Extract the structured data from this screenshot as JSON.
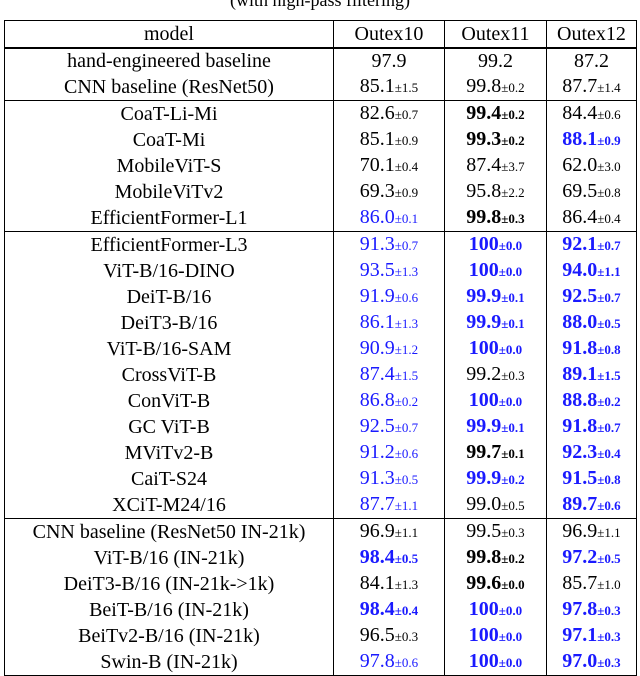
{
  "caption_fragment": "(with high-pass filtering)",
  "columns": [
    "model",
    "Outex10",
    "Outex11",
    "Outex12"
  ],
  "colors": {
    "highlight": "#1a1aff",
    "text": "#000000"
  },
  "rows": [
    {
      "model": "hand-engineered baseline",
      "cells": [
        {
          "v": "97.9",
          "pm": "",
          "b": false,
          "blue": false
        },
        {
          "v": "99.2",
          "pm": "",
          "b": false,
          "blue": false
        },
        {
          "v": "87.2",
          "pm": "",
          "b": false,
          "blue": false
        }
      ]
    },
    {
      "model": "CNN baseline (ResNet50)",
      "cells": [
        {
          "v": "85.1",
          "pm": "±1.5",
          "b": false,
          "blue": false
        },
        {
          "v": "99.8",
          "pm": "±0.2",
          "b": false,
          "blue": false
        },
        {
          "v": "87.7",
          "pm": "±1.4",
          "b": false,
          "blue": false
        }
      ]
    },
    {
      "model": "CoaT-Li-Mi",
      "sep": true,
      "cells": [
        {
          "v": "82.6",
          "pm": "±0.7",
          "b": false,
          "blue": false
        },
        {
          "v": "99.4",
          "pm": "±0.2",
          "b": true,
          "blue": false
        },
        {
          "v": "84.4",
          "pm": "±0.6",
          "b": false,
          "blue": false
        }
      ]
    },
    {
      "model": "CoaT-Mi",
      "cells": [
        {
          "v": "85.1",
          "pm": "±0.9",
          "b": false,
          "blue": false
        },
        {
          "v": "99.3",
          "pm": "±0.2",
          "b": true,
          "blue": false
        },
        {
          "v": "88.1",
          "pm": "±0.9",
          "b": true,
          "blue": true
        }
      ]
    },
    {
      "model": "MobileViT-S",
      "cells": [
        {
          "v": "70.1",
          "pm": "±0.4",
          "b": false,
          "blue": false
        },
        {
          "v": "87.4",
          "pm": "±3.7",
          "b": false,
          "blue": false
        },
        {
          "v": "62.0",
          "pm": "±3.0",
          "b": false,
          "blue": false
        }
      ]
    },
    {
      "model": "MobileViTv2",
      "cells": [
        {
          "v": "69.3",
          "pm": "±0.9",
          "b": false,
          "blue": false
        },
        {
          "v": "95.8",
          "pm": "±2.2",
          "b": false,
          "blue": false
        },
        {
          "v": "69.5",
          "pm": "±0.8",
          "b": false,
          "blue": false
        }
      ]
    },
    {
      "model": "EfficientFormer-L1",
      "cells": [
        {
          "v": "86.0",
          "pm": "±0.1",
          "b": false,
          "blue": true
        },
        {
          "v": "99.8",
          "pm": "±0.3",
          "b": true,
          "blue": false
        },
        {
          "v": "86.4",
          "pm": "±0.4",
          "b": false,
          "blue": false
        }
      ]
    },
    {
      "model": "EfficientFormer-L3",
      "sep": true,
      "cells": [
        {
          "v": "91.3",
          "pm": "±0.7",
          "b": false,
          "blue": true
        },
        {
          "v": "100",
          "pm": "±0.0",
          "b": true,
          "blue": true
        },
        {
          "v": "92.1",
          "pm": "±0.7",
          "b": true,
          "blue": true
        }
      ]
    },
    {
      "model": "ViT-B/16-DINO",
      "cells": [
        {
          "v": "93.5",
          "pm": "±1.3",
          "b": false,
          "blue": true
        },
        {
          "v": "100",
          "pm": "±0.0",
          "b": true,
          "blue": true
        },
        {
          "v": "94.0",
          "pm": "±1.1",
          "b": true,
          "blue": true
        }
      ]
    },
    {
      "model": "DeiT-B/16",
      "cells": [
        {
          "v": "91.9",
          "pm": "±0.6",
          "b": false,
          "blue": true
        },
        {
          "v": "99.9",
          "pm": "±0.1",
          "b": true,
          "blue": true
        },
        {
          "v": "92.5",
          "pm": "±0.7",
          "b": true,
          "blue": true
        }
      ]
    },
    {
      "model": "DeiT3-B/16",
      "cells": [
        {
          "v": "86.1",
          "pm": "±1.3",
          "b": false,
          "blue": true
        },
        {
          "v": "99.9",
          "pm": "±0.1",
          "b": true,
          "blue": true
        },
        {
          "v": "88.0",
          "pm": "±0.5",
          "b": true,
          "blue": true
        }
      ]
    },
    {
      "model": "ViT-B/16-SAM",
      "cells": [
        {
          "v": "90.9",
          "pm": "±1.2",
          "b": false,
          "blue": true
        },
        {
          "v": "100",
          "pm": "±0.0",
          "b": true,
          "blue": true
        },
        {
          "v": "91.8",
          "pm": "±0.8",
          "b": true,
          "blue": true
        }
      ]
    },
    {
      "model": "CrossViT-B",
      "cells": [
        {
          "v": "87.4",
          "pm": "±1.5",
          "b": false,
          "blue": true
        },
        {
          "v": "99.2",
          "pm": "±0.3",
          "b": false,
          "blue": false
        },
        {
          "v": "89.1",
          "pm": "±1.5",
          "b": true,
          "blue": true
        }
      ]
    },
    {
      "model": "ConViT-B",
      "cells": [
        {
          "v": "86.8",
          "pm": "±0.2",
          "b": false,
          "blue": true
        },
        {
          "v": "100",
          "pm": "±0.0",
          "b": true,
          "blue": true
        },
        {
          "v": "88.8",
          "pm": "±0.2",
          "b": true,
          "blue": true
        }
      ]
    },
    {
      "model": "GC ViT-B",
      "cells": [
        {
          "v": "92.5",
          "pm": "±0.7",
          "b": false,
          "blue": true
        },
        {
          "v": "99.9",
          "pm": "±0.1",
          "b": true,
          "blue": true
        },
        {
          "v": "91.8",
          "pm": "±0.7",
          "b": true,
          "blue": true
        }
      ]
    },
    {
      "model": "MViTv2-B",
      "cells": [
        {
          "v": "91.2",
          "pm": "±0.6",
          "b": false,
          "blue": true
        },
        {
          "v": "99.7",
          "pm": "±0.1",
          "b": true,
          "blue": false
        },
        {
          "v": "92.3",
          "pm": "±0.4",
          "b": true,
          "blue": true
        }
      ]
    },
    {
      "model": "CaiT-S24",
      "cells": [
        {
          "v": "91.3",
          "pm": "±0.5",
          "b": false,
          "blue": true
        },
        {
          "v": "99.9",
          "pm": "±0.2",
          "b": true,
          "blue": true
        },
        {
          "v": "91.5",
          "pm": "±0.8",
          "b": true,
          "blue": true
        }
      ]
    },
    {
      "model": "XCiT-M24/16",
      "cells": [
        {
          "v": "87.7",
          "pm": "±1.1",
          "b": false,
          "blue": true
        },
        {
          "v": "99.0",
          "pm": "±0.5",
          "b": false,
          "blue": false
        },
        {
          "v": "89.7",
          "pm": "±0.6",
          "b": true,
          "blue": true
        }
      ]
    },
    {
      "model": "CNN baseline (ResNet50 IN-21k)",
      "sep": true,
      "cells": [
        {
          "v": "96.9",
          "pm": "±1.1",
          "b": false,
          "blue": false
        },
        {
          "v": "99.5",
          "pm": "±0.3",
          "b": false,
          "blue": false
        },
        {
          "v": "96.9",
          "pm": "±1.1",
          "b": false,
          "blue": false
        }
      ]
    },
    {
      "model": "ViT-B/16 (IN-21k)",
      "cells": [
        {
          "v": "98.4",
          "pm": "±0.5",
          "b": true,
          "blue": true
        },
        {
          "v": "99.8",
          "pm": "±0.2",
          "b": true,
          "blue": false
        },
        {
          "v": "97.2",
          "pm": "±0.5",
          "b": true,
          "blue": true
        }
      ]
    },
    {
      "model": "DeiT3-B/16 (IN-21k->1k)",
      "cells": [
        {
          "v": "84.1",
          "pm": "±1.3",
          "b": false,
          "blue": false
        },
        {
          "v": "99.6",
          "pm": "±0.0",
          "b": true,
          "blue": false
        },
        {
          "v": "85.7",
          "pm": "±1.0",
          "b": false,
          "blue": false
        }
      ]
    },
    {
      "model": "BeiT-B/16 (IN-21k)",
      "cells": [
        {
          "v": "98.4",
          "pm": "±0.4",
          "b": true,
          "blue": true
        },
        {
          "v": "100",
          "pm": "±0.0",
          "b": true,
          "blue": true
        },
        {
          "v": "97.8",
          "pm": "±0.3",
          "b": true,
          "blue": true
        }
      ]
    },
    {
      "model": "BeiTv2-B/16 (IN-21k)",
      "cells": [
        {
          "v": "96.5",
          "pm": "±0.3",
          "b": false,
          "blue": false
        },
        {
          "v": "100",
          "pm": "±0.0",
          "b": true,
          "blue": true
        },
        {
          "v": "97.1",
          "pm": "±0.3",
          "b": true,
          "blue": true
        }
      ]
    },
    {
      "model": "Swin-B (IN-21k)",
      "cells": [
        {
          "v": "97.8",
          "pm": "±0.6",
          "b": false,
          "blue": true
        },
        {
          "v": "100",
          "pm": "±0.0",
          "b": true,
          "blue": true
        },
        {
          "v": "97.0",
          "pm": "±0.3",
          "b": true,
          "blue": true
        }
      ]
    }
  ]
}
